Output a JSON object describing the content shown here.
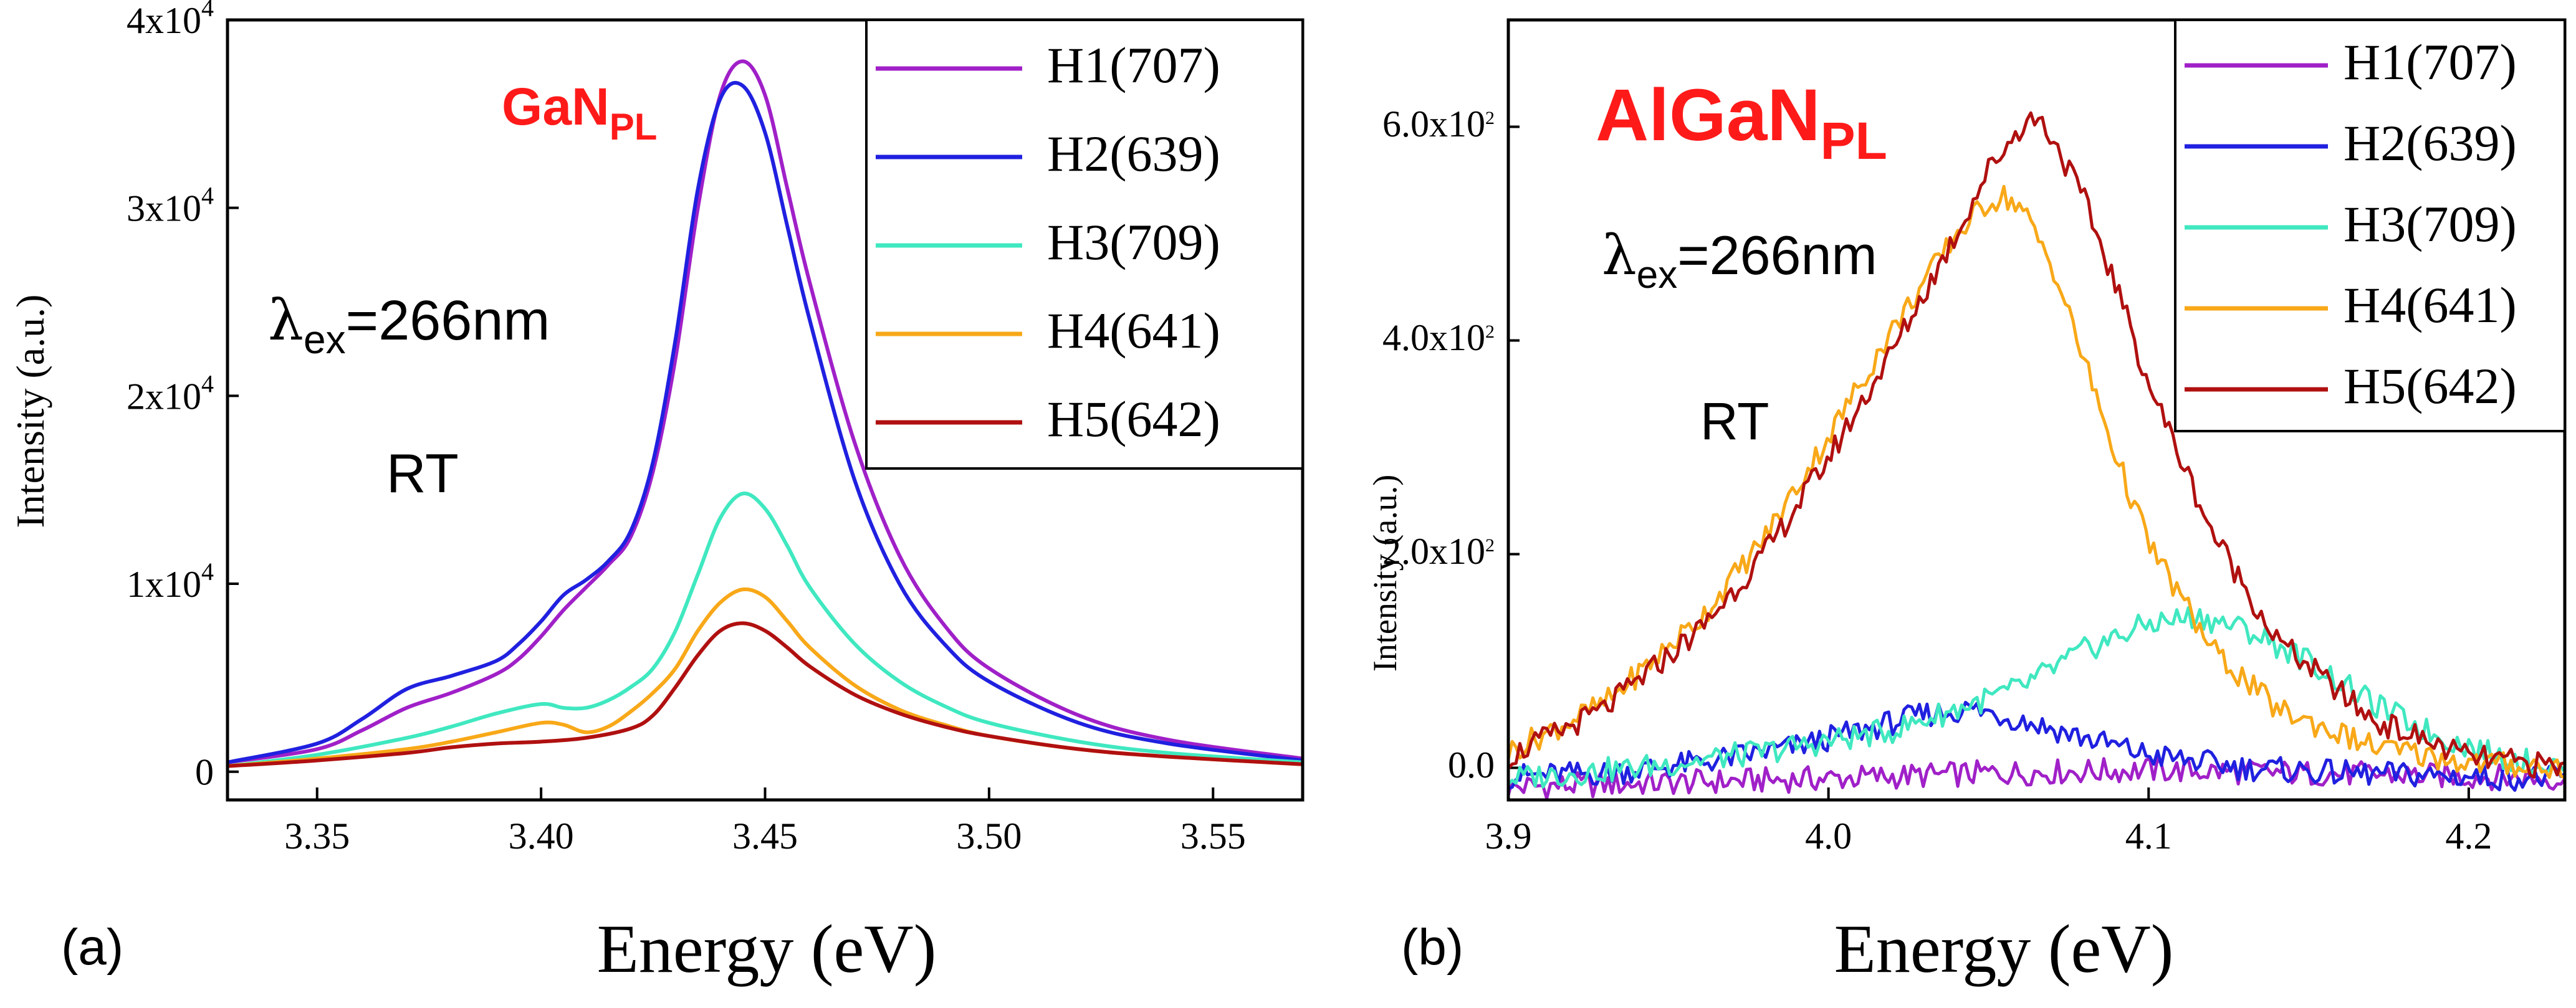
{
  "chart_data": [
    {
      "panel_label": "(a)",
      "type": "line",
      "title": "GaN",
      "title_subscript": "PL",
      "xlabel": "Energy (eV)",
      "ylabel": "Intensity (a.u.)",
      "xlim": [
        3.33,
        3.57
      ],
      "ylim": [
        -1500,
        40000
      ],
      "xticks": [
        3.35,
        3.4,
        3.45,
        3.5,
        3.55
      ],
      "xtick_labels": [
        "3.35",
        "3.40",
        "3.45",
        "3.50",
        "3.55"
      ],
      "yticks": [
        0,
        10000,
        20000,
        30000,
        40000
      ],
      "ytick_labels": [
        {
          "base": "0",
          "exp": ""
        },
        {
          "base": "1x10",
          "exp": "4"
        },
        {
          "base": "2x10",
          "exp": "4"
        },
        {
          "base": "3x10",
          "exp": "4"
        },
        {
          "base": "4x10",
          "exp": "4"
        }
      ],
      "annotations": {
        "lambda_symbol": "λ",
        "lambda_sub": "ex",
        "lambda_value": "=266nm",
        "temperature": "RT"
      },
      "legend_position": "top-right",
      "series": [
        {
          "name": "H1(707)",
          "color": "#a020c8",
          "x": [
            3.33,
            3.35,
            3.36,
            3.37,
            3.38,
            3.39,
            3.395,
            3.4,
            3.405,
            3.41,
            3.415,
            3.42,
            3.425,
            3.43,
            3.435,
            3.44,
            3.445,
            3.45,
            3.455,
            3.46,
            3.47,
            3.48,
            3.49,
            3.5,
            3.52,
            3.54,
            3.57
          ],
          "values": [
            500,
            1200,
            2200,
            3400,
            4200,
            5200,
            6000,
            7200,
            8600,
            9800,
            11000,
            12500,
            16000,
            22000,
            30000,
            36000,
            37800,
            36000,
            31000,
            26000,
            17500,
            11500,
            7800,
            5500,
            3000,
            1700,
            700
          ]
        },
        {
          "name": "H2(639)",
          "color": "#2020e0",
          "x": [
            3.33,
            3.35,
            3.36,
            3.37,
            3.38,
            3.39,
            3.395,
            3.4,
            3.405,
            3.41,
            3.415,
            3.42,
            3.425,
            3.43,
            3.435,
            3.44,
            3.445,
            3.45,
            3.455,
            3.46,
            3.47,
            3.48,
            3.49,
            3.5,
            3.52,
            3.54,
            3.57
          ],
          "values": [
            500,
            1500,
            2800,
            4400,
            5100,
            5900,
            6800,
            8000,
            9400,
            10200,
            11200,
            12800,
            16500,
            23000,
            31000,
            35800,
            36500,
            34000,
            29000,
            24000,
            15500,
            10000,
            6800,
            4800,
            2600,
            1500,
            600
          ]
        },
        {
          "name": "H3(709)",
          "color": "#40e8c0",
          "x": [
            3.33,
            3.35,
            3.37,
            3.38,
            3.39,
            3.4,
            3.405,
            3.41,
            3.415,
            3.42,
            3.425,
            3.43,
            3.435,
            3.44,
            3.445,
            3.45,
            3.455,
            3.46,
            3.47,
            3.48,
            3.49,
            3.5,
            3.52,
            3.54,
            3.57
          ],
          "values": [
            300,
            900,
            1800,
            2400,
            3100,
            3600,
            3400,
            3400,
            3800,
            4500,
            5500,
            7500,
            10500,
            13500,
            14800,
            14000,
            12000,
            9800,
            6800,
            4800,
            3500,
            2600,
            1600,
            1000,
            500
          ]
        },
        {
          "name": "H4(641)",
          "color": "#f8a818",
          "x": [
            3.33,
            3.35,
            3.37,
            3.38,
            3.39,
            3.4,
            3.405,
            3.41,
            3.415,
            3.42,
            3.425,
            3.43,
            3.435,
            3.44,
            3.445,
            3.45,
            3.455,
            3.46,
            3.47,
            3.48,
            3.49,
            3.5,
            3.52,
            3.54,
            3.57
          ],
          "values": [
            300,
            700,
            1200,
            1600,
            2100,
            2600,
            2500,
            2100,
            2400,
            3200,
            4200,
            5500,
            7500,
            9000,
            9700,
            9300,
            8000,
            6600,
            4600,
            3300,
            2500,
            1900,
            1200,
            800,
            400
          ]
        },
        {
          "name": "H5(642)",
          "color": "#b01010",
          "x": [
            3.33,
            3.35,
            3.37,
            3.38,
            3.39,
            3.4,
            3.41,
            3.42,
            3.425,
            3.43,
            3.435,
            3.44,
            3.445,
            3.45,
            3.455,
            3.46,
            3.47,
            3.48,
            3.49,
            3.5,
            3.52,
            3.54,
            3.57
          ],
          "values": [
            300,
            600,
            1000,
            1300,
            1500,
            1600,
            1800,
            2300,
            3000,
            4500,
            6200,
            7500,
            7900,
            7500,
            6600,
            5600,
            4100,
            3100,
            2400,
            1900,
            1200,
            800,
            400
          ]
        }
      ]
    },
    {
      "panel_label": "(b)",
      "type": "line",
      "title": "AlGaN",
      "title_subscript": "PL",
      "xlabel": "Energy (eV)",
      "ylabel": "Intensity (a.u.)",
      "xlim": [
        3.9,
        4.23
      ],
      "ylim": [
        -30,
        700
      ],
      "xticks": [
        3.9,
        4.0,
        4.1,
        4.2
      ],
      "xtick_labels": [
        "3.9",
        "4.0",
        "4.1",
        "4.2"
      ],
      "yticks": [
        0,
        200,
        400,
        600
      ],
      "ytick_labels": [
        {
          "base": "0.0",
          "exp": ""
        },
        {
          "base": "2.0x10",
          "exp": "2"
        },
        {
          "base": "4.0x10",
          "exp": "2"
        },
        {
          "base": "6.0x10",
          "exp": "2"
        }
      ],
      "annotations": {
        "lambda_symbol": "λ",
        "lambda_sub": "ex",
        "lambda_value": "=266nm",
        "temperature": "RT"
      },
      "legend_position": "top-right",
      "series": [
        {
          "name": "H1(707)",
          "color": "#a020c8",
          "x": [
            3.9,
            3.95,
            4.0,
            4.05,
            4.1,
            4.15,
            4.2,
            4.23
          ],
          "values": [
            -18,
            -14,
            -10,
            -5,
            -2,
            -5,
            -8,
            -10
          ]
        },
        {
          "name": "H2(639)",
          "color": "#2020e0",
          "x": [
            3.9,
            3.93,
            3.96,
            3.99,
            4.01,
            4.03,
            4.045,
            4.06,
            4.08,
            4.1,
            4.13,
            4.16,
            4.2,
            4.23
          ],
          "values": [
            -8,
            -5,
            5,
            20,
            35,
            50,
            55,
            45,
            28,
            12,
            0,
            -5,
            -8,
            -10
          ]
        },
        {
          "name": "H3(709)",
          "color": "#40e8c0",
          "x": [
            3.9,
            3.94,
            3.98,
            4.02,
            4.06,
            4.08,
            4.1,
            4.115,
            4.13,
            4.15,
            4.17,
            4.19,
            4.21,
            4.23
          ],
          "values": [
            -10,
            0,
            15,
            35,
            75,
            110,
            135,
            142,
            130,
            100,
            60,
            30,
            10,
            0
          ]
        },
        {
          "name": "H4(641)",
          "color": "#f8a818",
          "x": [
            3.9,
            3.93,
            3.96,
            3.98,
            4.0,
            4.02,
            4.04,
            4.05,
            4.055,
            4.06,
            4.07,
            4.08,
            4.09,
            4.1,
            4.12,
            4.14,
            4.17,
            4.2,
            4.23
          ],
          "values": [
            15,
            60,
            140,
            215,
            310,
            410,
            500,
            530,
            535,
            525,
            470,
            380,
            290,
            210,
            110,
            55,
            20,
            5,
            0
          ]
        },
        {
          "name": "H5(642)",
          "color": "#b01010",
          "x": [
            3.9,
            3.93,
            3.96,
            3.98,
            4.0,
            4.02,
            4.04,
            4.05,
            4.06,
            4.065,
            4.07,
            4.08,
            4.09,
            4.1,
            4.12,
            4.14,
            4.17,
            4.2,
            4.23
          ],
          "values": [
            10,
            55,
            130,
            200,
            290,
            390,
            500,
            560,
            600,
            610,
            590,
            530,
            450,
            360,
            220,
            120,
            45,
            10,
            0
          ]
        }
      ]
    }
  ]
}
